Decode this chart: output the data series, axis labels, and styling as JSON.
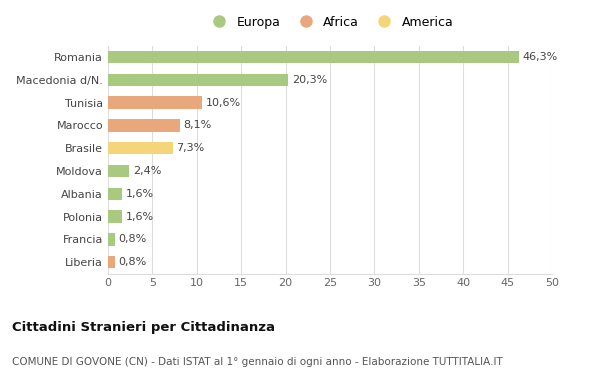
{
  "categories": [
    "Romania",
    "Macedonia d/N.",
    "Tunisia",
    "Marocco",
    "Brasile",
    "Moldova",
    "Albania",
    "Polonia",
    "Francia",
    "Liberia"
  ],
  "values": [
    46.3,
    20.3,
    10.6,
    8.1,
    7.3,
    2.4,
    1.6,
    1.6,
    0.8,
    0.8
  ],
  "colors": [
    "#a8c97f",
    "#a8c97f",
    "#e8a87c",
    "#e8a87c",
    "#f5d57a",
    "#a8c97f",
    "#a8c97f",
    "#a8c97f",
    "#a8c97f",
    "#e8a87c"
  ],
  "labels": [
    "46,3%",
    "20,3%",
    "10,6%",
    "8,1%",
    "7,3%",
    "2,4%",
    "1,6%",
    "1,6%",
    "0,8%",
    "0,8%"
  ],
  "legend": [
    {
      "label": "Europa",
      "color": "#a8c97f"
    },
    {
      "label": "Africa",
      "color": "#e8a87c"
    },
    {
      "label": "America",
      "color": "#f5d57a"
    }
  ],
  "xlim": [
    0,
    50
  ],
  "xticks": [
    0,
    5,
    10,
    15,
    20,
    25,
    30,
    35,
    40,
    45,
    50
  ],
  "title": "Cittadini Stranieri per Cittadinanza",
  "subtitle": "COMUNE DI GOVONE (CN) - Dati ISTAT al 1° gennaio di ogni anno - Elaborazione TUTTITALIA.IT",
  "background_color": "#ffffff",
  "grid_color": "#dddddd",
  "bar_height": 0.55,
  "label_fontsize": 8,
  "ytick_fontsize": 8,
  "xtick_fontsize": 8
}
